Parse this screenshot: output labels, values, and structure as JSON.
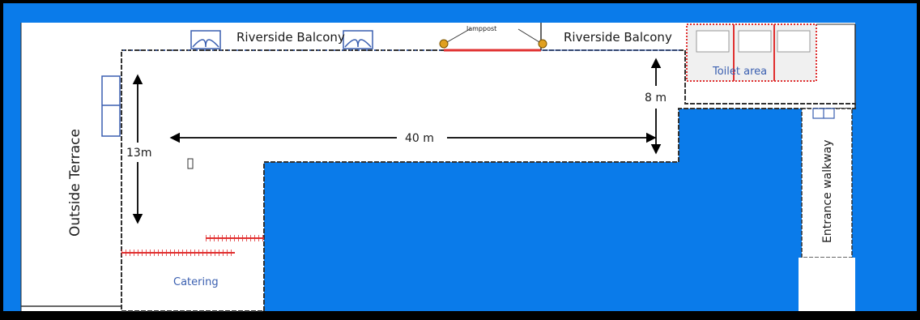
{
  "labels": {
    "balcony_left": "Riverside Balcony",
    "balcony_right": "Riverside Balcony",
    "lamppost": "lamppost",
    "toilet": "Toilet area",
    "outside_terrace": "Outside Terrace",
    "catering": "Catering",
    "entrance": "Entrance walkway",
    "dim_width": "40 m",
    "dim_height_left": "13m",
    "dim_height_right": "8 m"
  },
  "colors": {
    "water": "#0a7bea",
    "floor": "#ffffff",
    "wall": "#333333",
    "window": "#3a5fb0",
    "accent_red": "#e03030",
    "toilet_text": "#3a5fb0",
    "catering_text": "#3a5fb0",
    "lamp": "#e0a020"
  }
}
